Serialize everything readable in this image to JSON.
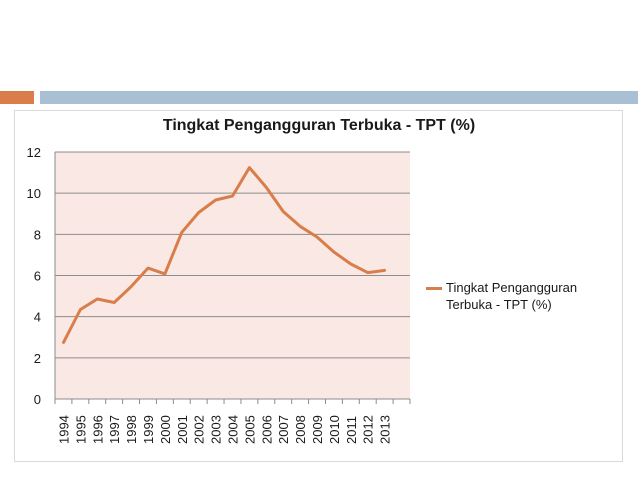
{
  "chart_data": {
    "type": "line",
    "title": "Tingkat Pengangguran Terbuka - TPT (%)",
    "xlabel": "",
    "ylabel": "",
    "categories": [
      "1994",
      "1995",
      "1996",
      "1997",
      "1998",
      "1999",
      "2000",
      "2001",
      "2002",
      "2003",
      "2004",
      "2005",
      "2006",
      "2007",
      "2008",
      "2009",
      "2010",
      "2011",
      "2012",
      "2013"
    ],
    "series": [
      {
        "name": "Tingkat Pengangguran Terbuka - TPT (%)",
        "values": [
          2.75,
          4.35,
          4.86,
          4.69,
          5.46,
          6.36,
          6.08,
          8.1,
          9.06,
          9.67,
          9.86,
          11.24,
          10.28,
          9.11,
          8.39,
          7.87,
          7.14,
          6.56,
          6.14,
          6.25
        ],
        "color": "#d97e4a"
      }
    ],
    "ylim": [
      0,
      12
    ],
    "yticks": [
      0,
      2,
      4,
      6,
      8,
      10,
      12
    ],
    "grid": true,
    "plot_background": "#f9e8e3",
    "legend_position": "right"
  }
}
